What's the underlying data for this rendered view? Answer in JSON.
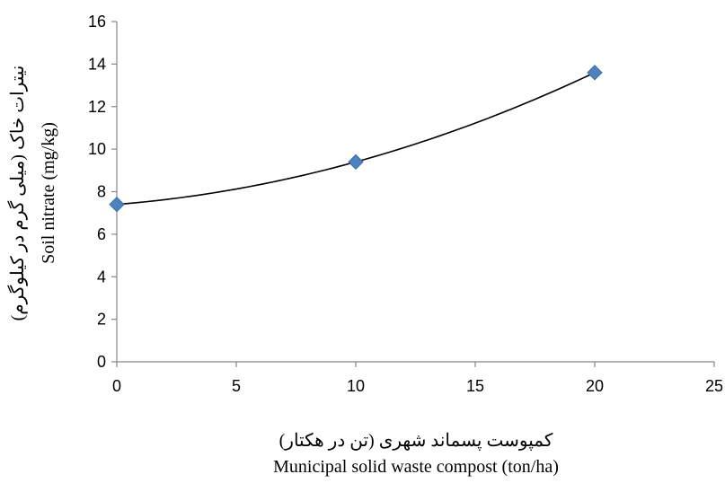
{
  "chart_data": {
    "type": "scatter",
    "x_tick_labels": [
      "0",
      "5",
      "10",
      "15",
      "20",
      "25"
    ],
    "y_tick_labels": [
      "0",
      "2",
      "4",
      "6",
      "8",
      "10",
      "12",
      "14",
      "16"
    ],
    "xlim": [
      0,
      25
    ],
    "ylim": [
      0,
      16
    ],
    "x_ticks": [
      0,
      5,
      10,
      15,
      20,
      25
    ],
    "y_ticks": [
      0,
      2,
      4,
      6,
      8,
      10,
      12,
      14,
      16
    ],
    "xlabel_fa": "کمپوست پسماند شهری (تن در هکتار)",
    "xlabel": "Municipal solid waste compost (ton/ha)",
    "ylabel_fa": "نیترات خاک (میلی گرم در کیلوگرم)",
    "ylabel": "Soil nitrate (mg/kg)",
    "grid": false,
    "series": [
      {
        "marker": "diamond",
        "color": "#4F81BD",
        "x": [
          0,
          10,
          20
        ],
        "y": [
          7.4,
          9.4,
          13.6
        ]
      }
    ],
    "trendline": {
      "type": "polynomial",
      "degree": 2,
      "color": "#000000"
    }
  }
}
